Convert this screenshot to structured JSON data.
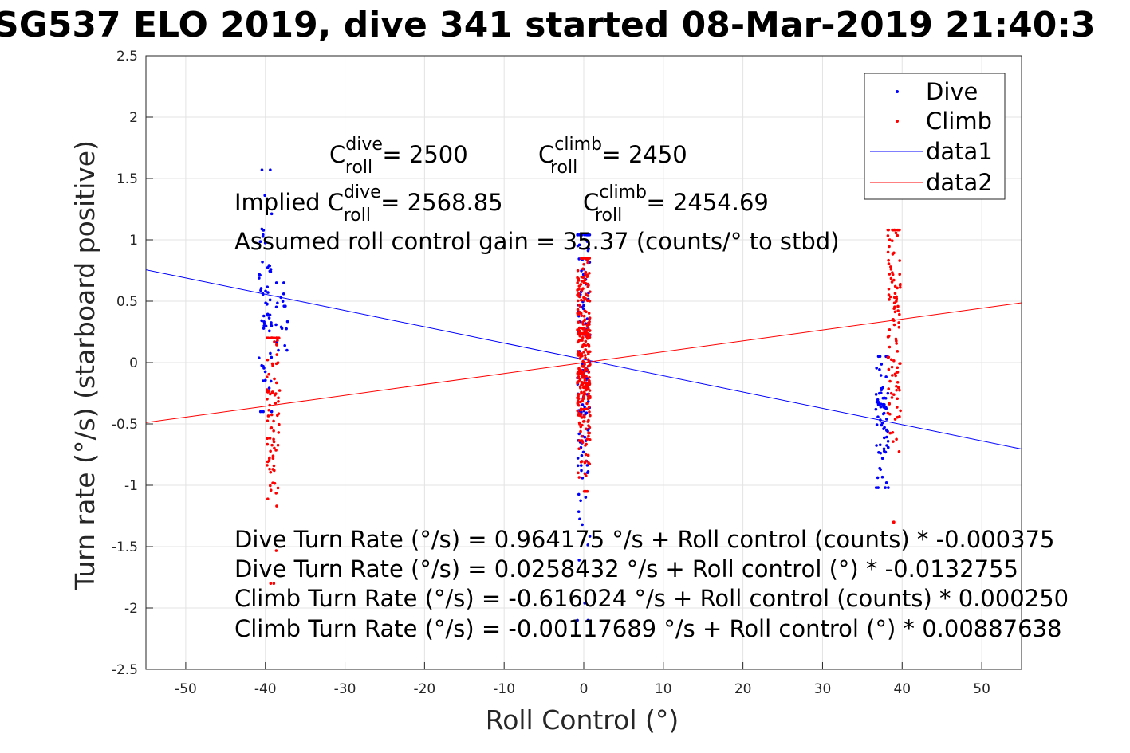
{
  "chart_data": {
    "type": "scatter",
    "title": "SG537 ELO 2019, dive 341 started 08-Mar-2019 21:40:3",
    "xlabel": "Roll Control (°)",
    "ylabel": "Turn rate (°/s) (starboard positive)",
    "xlim": [
      -55,
      55
    ],
    "ylim": [
      -2.5,
      2.5
    ],
    "xticks": [
      "-50",
      "-40",
      "-30",
      "-20",
      "-10",
      "0",
      "10",
      "20",
      "30",
      "40",
      "50"
    ],
    "yticks": [
      "2.5",
      "2",
      "1.5",
      "1",
      "0.5",
      "0",
      "-0.5",
      "-1",
      "-1.5",
      "-2",
      "-2.5"
    ],
    "grid": true,
    "legend_position": "top-right",
    "legend": [
      "Dive",
      "Climb",
      "data1",
      "data2"
    ],
    "colors": {
      "dive": "#0000ff",
      "climb": "#ff0000"
    },
    "series": [
      {
        "name": "Dive",
        "kind": "scatter",
        "color": "#0000ff",
        "clusters": [
          {
            "x": -40,
            "ymin": -0.4,
            "ymax": 1.57,
            "n": 60,
            "mean": 0.45
          },
          {
            "x": -38,
            "ymin": 0.1,
            "ymax": 0.65,
            "n": 18,
            "mean": 0.4
          },
          {
            "x": 0,
            "ymin": -2.1,
            "ymax": 1.04,
            "n": 120,
            "mean": 0.0
          },
          {
            "x": 37.5,
            "ymin": -1.02,
            "ymax": 0.05,
            "n": 70,
            "mean": -0.45
          }
        ]
      },
      {
        "name": "Climb",
        "kind": "scatter",
        "color": "#ff0000",
        "clusters": [
          {
            "x": -39,
            "ymin": -1.8,
            "ymax": 0.2,
            "n": 90,
            "mean": -0.35
          },
          {
            "x": 0,
            "ymin": -1.05,
            "ymax": 0.85,
            "n": 300,
            "mean": 0.0
          },
          {
            "x": 39,
            "ymin": -1.3,
            "ymax": 1.08,
            "n": 110,
            "mean": 0.3
          }
        ]
      },
      {
        "name": "data1",
        "kind": "line",
        "color": "#0000ff",
        "x": [
          -55,
          55
        ],
        "y": [
          0.756,
          -0.705
        ]
      },
      {
        "name": "data2",
        "kind": "line",
        "color": "#ff0000",
        "x": [
          -55,
          55
        ],
        "y": [
          -0.489,
          0.487
        ]
      }
    ],
    "annotations": {
      "c_dive_label": "C",
      "c_dive_sup": "dive",
      "c_dive_sub": "roll",
      "c_dive_value": " = 2500",
      "c_climb_label": "C",
      "c_climb_sup": "climb",
      "c_climb_sub": "roll",
      "c_climb_value": " = 2450",
      "implied_prefix": "Implied C",
      "implied_dive_sup": "dive",
      "implied_dive_sub": "roll",
      "implied_dive_value": " = 2568.85",
      "implied_climb_label": "C",
      "implied_climb_sup": "climb",
      "implied_climb_sub": "roll",
      "implied_climb_value": " = 2454.69",
      "gain": "Assumed roll control gain = 35.37 (counts/° to stbd)",
      "fit1": "Dive Turn Rate (°/s) = 0.964175 °/s + Roll control (counts) * -0.000375",
      "fit2": "Dive Turn Rate (°/s) = 0.0258432 °/s + Roll control (°) * -0.0132755",
      "fit3": "Climb Turn Rate (°/s) = -0.616024 °/s + Roll control (counts) * 0.000250",
      "fit4": "Climb Turn Rate (°/s) = -0.00117689 °/s + Roll control (°) * 0.00887638"
    }
  }
}
